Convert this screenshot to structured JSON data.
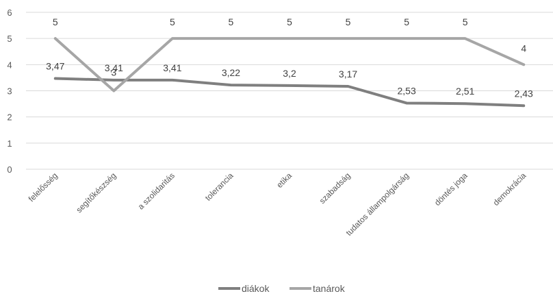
{
  "chart_data": {
    "type": "line",
    "categories": [
      "felelősség",
      "segítőkészség",
      "a szolidaritás",
      "tolerancia",
      "etika",
      "szabadság",
      "tudatos állampolgárság",
      "döntés joga",
      "demokrácia"
    ],
    "series": [
      {
        "name": "diákok",
        "values": [
          3.47,
          3.41,
          3.41,
          3.22,
          3.2,
          3.17,
          2.53,
          2.51,
          2.43
        ],
        "labels": [
          "3,47",
          "3,41",
          "3,41",
          "3,22",
          "3,2",
          "3,17",
          "2,53",
          "2,51",
          "2,43"
        ],
        "color": "#7f7f7f"
      },
      {
        "name": "tanárok",
        "values": [
          5,
          3,
          5,
          5,
          5,
          5,
          5,
          5,
          4
        ],
        "labels": [
          "5",
          "3",
          "5",
          "5",
          "5",
          "5",
          "5",
          "5",
          "4"
        ],
        "color": "#a6a6a6"
      }
    ],
    "yticks": [
      "0",
      "1",
      "2",
      "3",
      "4",
      "5",
      "6"
    ],
    "ylim": [
      0,
      6
    ],
    "grid": true,
    "legend": "bottom-center",
    "title": "",
    "xlabel": "",
    "ylabel": ""
  }
}
